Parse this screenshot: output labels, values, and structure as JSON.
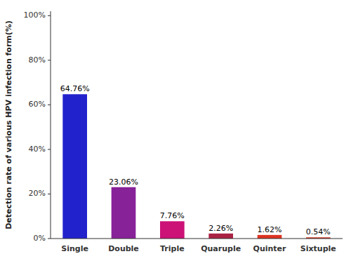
{
  "chart_data": {
    "type": "bar",
    "categories": [
      "Single",
      "Double",
      "Triple",
      "Quaruple",
      "Quinter",
      "Sixtuple"
    ],
    "values": [
      64.76,
      23.06,
      7.76,
      2.26,
      1.62,
      0.54
    ],
    "value_labels": [
      "64.76%",
      "23.06%",
      "7.76%",
      "2.26%",
      "1.62%",
      "0.54%"
    ],
    "data_labels": true,
    "colors": [
      "#2222CC",
      "#882299",
      "#CC1177",
      "#AA2244",
      "#DD3322",
      "#CC3322"
    ],
    "ylabel": "Detection rate of various HPV infection form(%)",
    "ylim": [
      0,
      102
    ],
    "yticks": [
      {
        "value": 0,
        "label": "0%"
      },
      {
        "value": 20,
        "label": "20%"
      },
      {
        "value": 40,
        "label": "40%"
      },
      {
        "value": 60,
        "label": "60%"
      },
      {
        "value": 80,
        "label": "80%"
      },
      {
        "value": 100,
        "label": "100%"
      }
    ],
    "grid": false
  }
}
